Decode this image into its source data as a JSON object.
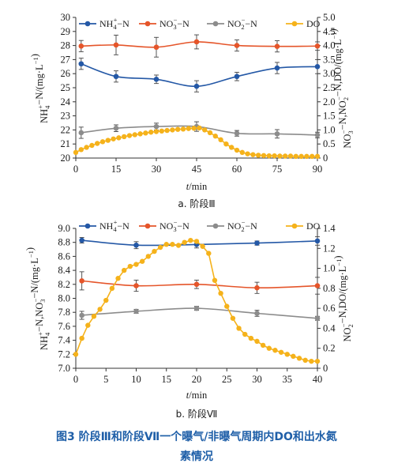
{
  "chart_data": [
    {
      "type": "line",
      "caption": "a. 阶段Ⅲ",
      "xlabel": "t/min",
      "ylabel_left": "NH4+-N/(mg·L-1)",
      "ylabel_right": "NO3--N,NO2--N,DO/(mg·L-1)",
      "x_ticks": [
        0,
        15,
        30,
        45,
        60,
        75,
        90
      ],
      "xlim": [
        0,
        90
      ],
      "ylim_left": [
        20,
        30
      ],
      "ylim_right": [
        0,
        5
      ],
      "y_ticks_left": [
        20,
        21,
        22,
        23,
        24,
        25,
        26,
        27,
        28,
        29,
        30
      ],
      "y_ticks_right": [
        "0",
        "0.5",
        "1.0",
        "1.5",
        "2.0",
        "2.5",
        "3.0",
        "3.5",
        "4.0",
        "4.5",
        "5.0"
      ],
      "legend_position": "top",
      "series": [
        {
          "name": "NH4+-N",
          "legend": [
            "NH",
            "4",
            "+",
            "−N"
          ],
          "axis": "left",
          "color": "#2458a6",
          "marker": "circle",
          "x": [
            2,
            15,
            30,
            45,
            60,
            75,
            90
          ],
          "y": [
            26.7,
            25.8,
            25.6,
            25.1,
            25.8,
            26.4,
            26.5
          ],
          "err": [
            0.4,
            0.4,
            0.3,
            0.4,
            0.3,
            0.4,
            0.5
          ]
        },
        {
          "name": "NO3--N",
          "legend": [
            "NO",
            "3",
            "−",
            "−N"
          ],
          "axis": "right",
          "color": "#e5552a",
          "marker": "circle",
          "x": [
            2,
            15,
            30,
            45,
            60,
            75,
            90
          ],
          "y": [
            3.98,
            4.02,
            3.94,
            4.13,
            4.0,
            3.97,
            3.98
          ],
          "err": [
            0.2,
            0.35,
            0.35,
            0.25,
            0.2,
            0.2,
            0.15
          ]
        },
        {
          "name": "NO2--N",
          "legend": [
            "NO",
            "2",
            "−",
            "−N"
          ],
          "axis": "right",
          "color": "#8c8c8c",
          "marker": "circle",
          "x": [
            2,
            15,
            30,
            45,
            60,
            75,
            90
          ],
          "y": [
            0.9,
            1.06,
            1.12,
            1.12,
            0.88,
            0.86,
            0.82
          ],
          "err": [
            0.2,
            0.12,
            0.12,
            0.17,
            0.1,
            0.15,
            0.1
          ]
        },
        {
          "name": "DO",
          "legend": [
            "DO"
          ],
          "axis": "right",
          "color": "#f5b21b",
          "marker": "circle-dense",
          "x": [
            0,
            2,
            4,
            6,
            8,
            10,
            12,
            14,
            16,
            18,
            20,
            22,
            24,
            26,
            28,
            30,
            32,
            34,
            36,
            38,
            40,
            42,
            44,
            46,
            48,
            50,
            52,
            54,
            56,
            58,
            60,
            62,
            64,
            66,
            68,
            70,
            72,
            74,
            76,
            78,
            80,
            82,
            84,
            86,
            88,
            90
          ],
          "y": [
            0.2,
            0.3,
            0.38,
            0.45,
            0.52,
            0.58,
            0.63,
            0.68,
            0.72,
            0.76,
            0.8,
            0.83,
            0.86,
            0.89,
            0.92,
            0.94,
            0.96,
            0.98,
            1.0,
            1.02,
            1.03,
            1.05,
            1.06,
            1.07,
            1.0,
            0.9,
            0.78,
            0.65,
            0.5,
            0.38,
            0.28,
            0.2,
            0.15,
            0.12,
            0.1,
            0.09,
            0.08,
            0.08,
            0.07,
            0.07,
            0.07,
            0.06,
            0.06,
            0.06,
            0.06,
            0.06
          ]
        }
      ]
    },
    {
      "type": "line",
      "caption": "b. 阶段Ⅶ",
      "xlabel": "t/min",
      "ylabel_left": "NH4+-N,NO3--N/(mg·L-1)",
      "ylabel_right": "NO2--N,DO/(mg·L-1)",
      "x_ticks": [
        0,
        5,
        10,
        15,
        20,
        25,
        30,
        35,
        40
      ],
      "xlim": [
        0,
        40
      ],
      "ylim_left": [
        7.0,
        9.0
      ],
      "ylim_right": [
        0,
        1.4
      ],
      "y_ticks_left": [
        "7.0",
        "7.2",
        "7.4",
        "7.6",
        "7.8",
        "8.0",
        "8.2",
        "8.4",
        "8.6",
        "8.8",
        "9.0"
      ],
      "y_ticks_right": [
        "0",
        "0.2",
        "0.4",
        "0.6",
        "0.8",
        "1.0",
        "1.2",
        "1.4"
      ],
      "legend_position": "top",
      "series": [
        {
          "name": "NH4+-N",
          "legend": [
            "NH",
            "4",
            "+",
            "−N"
          ],
          "axis": "left",
          "color": "#2458a6",
          "marker": "circle",
          "x": [
            1,
            10,
            20,
            30,
            40
          ],
          "y": [
            8.83,
            8.76,
            8.77,
            8.79,
            8.82
          ],
          "err": [
            0.04,
            0.05,
            0.05,
            0.03,
            0.06
          ]
        },
        {
          "name": "NO3--N",
          "legend": [
            "NO",
            "3",
            "−",
            "−N"
          ],
          "axis": "left",
          "color": "#e5552a",
          "marker": "circle",
          "x": [
            1,
            10,
            20,
            30,
            40
          ],
          "y": [
            8.25,
            8.18,
            8.2,
            8.15,
            8.18
          ],
          "err": [
            0.13,
            0.08,
            0.06,
            0.08,
            0.12
          ]
        },
        {
          "name": "NO2--N",
          "legend": [
            "NO",
            "2",
            "−",
            "−N"
          ],
          "axis": "right",
          "color": "#8c8c8c",
          "marker": "circle",
          "x": [
            1,
            10,
            20,
            30,
            40
          ],
          "y": [
            0.53,
            0.57,
            0.6,
            0.55,
            0.5
          ],
          "err": [
            0.04,
            0.02,
            0.02,
            0.03,
            0.02
          ]
        },
        {
          "name": "DO",
          "legend": [
            "DO"
          ],
          "axis": "right",
          "color": "#f5b21b",
          "marker": "circle-dense",
          "x": [
            0,
            1,
            2,
            3,
            4,
            5,
            6,
            7,
            8,
            9,
            10,
            11,
            12,
            13,
            14,
            15,
            16,
            17,
            18,
            19,
            20,
            21,
            22,
            23,
            24,
            25,
            26,
            27,
            28,
            29,
            30,
            31,
            32,
            33,
            34,
            35,
            36,
            37,
            38,
            39,
            40
          ],
          "y": [
            0.14,
            0.3,
            0.43,
            0.52,
            0.59,
            0.68,
            0.8,
            0.9,
            0.98,
            1.02,
            1.04,
            1.07,
            1.12,
            1.17,
            1.21,
            1.24,
            1.24,
            1.23,
            1.26,
            1.28,
            1.27,
            1.22,
            1.15,
            0.88,
            0.75,
            0.62,
            0.5,
            0.4,
            0.34,
            0.3,
            0.27,
            0.23,
            0.2,
            0.18,
            0.16,
            0.14,
            0.12,
            0.1,
            0.08,
            0.07,
            0.07
          ]
        }
      ]
    }
  ],
  "figure_caption": {
    "line1": "图3   阶段Ⅲ和阶段Ⅶ一个曝气/非曝气周期内DO和出水氮",
    "line2": "素情况"
  }
}
